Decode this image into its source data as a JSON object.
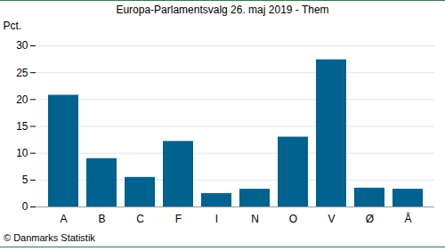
{
  "chart_data": {
    "type": "bar",
    "title": "Europa-Parlamentsvalg 26. maj 2019 - Them",
    "y_label": "Pct.",
    "caption": "© Danmarks Statistik",
    "categories": [
      "A",
      "B",
      "C",
      "F",
      "I",
      "N",
      "O",
      "V",
      "Ø",
      "Å"
    ],
    "values": [
      20.8,
      9.0,
      5.5,
      12.2,
      2.5,
      3.3,
      13.0,
      27.4,
      3.5,
      3.3
    ],
    "color": "#00628f",
    "ylim": [
      0,
      30
    ],
    "yticks": [
      0,
      5,
      10,
      15,
      20,
      25,
      30
    ],
    "grid": true
  }
}
